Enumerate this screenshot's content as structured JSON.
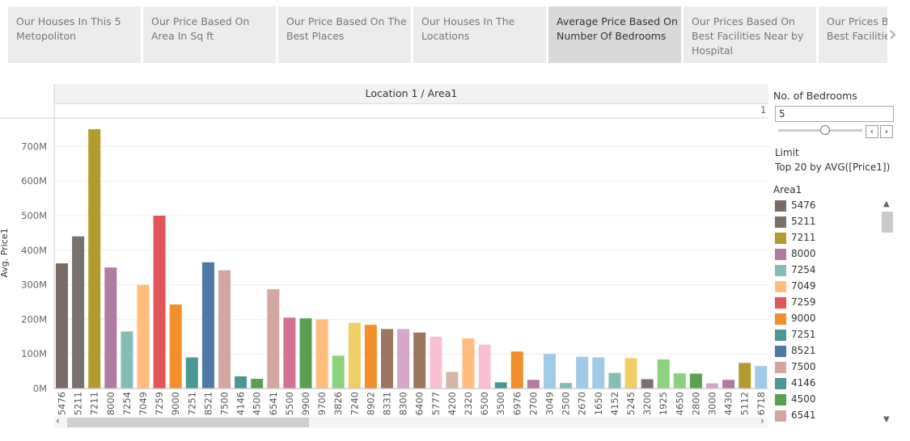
{
  "tabs": [
    {
      "label": "Our Houses In This 5 Metopoliton"
    },
    {
      "label": "Our Price Based On Area In Sq ft"
    },
    {
      "label": "Our Price Based On The Best Places"
    },
    {
      "label": "Our Houses In The Locations"
    },
    {
      "label": "Average Price Based On Number Of Bedrooms",
      "active": true
    },
    {
      "label": "Our Prices Based On Best Facilities Near by Hospital"
    },
    {
      "label": "Our Prices Based On Best Facilities Near by"
    }
  ],
  "tab_next_icon": "chevron-right-icon",
  "header": {
    "title": "Location 1 / Area1",
    "sub_value": "1"
  },
  "filters": {
    "bedrooms_label": "No. of Bedrooms",
    "bedrooms_value": "5",
    "bedrooms_slider_fraction": 0.55,
    "limit_label": "Limit",
    "limit_value": "Top 20 by AVG([Price1])",
    "legend_title": "Area1",
    "legend": [
      {
        "label": "5476",
        "color": "#7a6b66"
      },
      {
        "label": "5211",
        "color": "#77706c"
      },
      {
        "label": "7211",
        "color": "#b39b2d"
      },
      {
        "label": "8000",
        "color": "#b07aa1"
      },
      {
        "label": "7254",
        "color": "#86bcb6"
      },
      {
        "label": "7049",
        "color": "#ffbe7d"
      },
      {
        "label": "7259",
        "color": "#e15759"
      },
      {
        "label": "9000",
        "color": "#f28e2b"
      },
      {
        "label": "7251",
        "color": "#499894"
      },
      {
        "label": "8521",
        "color": "#4e79a7"
      },
      {
        "label": "7500",
        "color": "#d4a6a0"
      },
      {
        "label": "4146",
        "color": "#499894"
      },
      {
        "label": "4500",
        "color": "#59a14f"
      },
      {
        "label": "6541",
        "color": "#d4a6a0"
      }
    ]
  },
  "chart_data": {
    "type": "bar",
    "title": "Location 1 / Area1",
    "xlabel": "",
    "ylabel": "Avg. Price1",
    "ylim": [
      0,
      760
    ],
    "yticks": [
      "0M",
      "100M",
      "200M",
      "300M",
      "400M",
      "500M",
      "600M",
      "700M"
    ],
    "categories": [
      "5476",
      "5211",
      "7211",
      "8000",
      "7254",
      "7049",
      "7259",
      "9000",
      "7251",
      "8521",
      "7500",
      "4146",
      "4500",
      "6541",
      "5500",
      "9900",
      "9700",
      "3826",
      "7240",
      "8902",
      "8331",
      "8300",
      "6400",
      "5777",
      "4200",
      "2320",
      "6500",
      "3500",
      "6976",
      "2700",
      "3049",
      "2500",
      "2670",
      "1650",
      "4152",
      "5245",
      "3200",
      "1925",
      "4650",
      "2800",
      "3000",
      "4430",
      "5112",
      "6718"
    ],
    "values": [
      362,
      440,
      750,
      350,
      165,
      300,
      500,
      243,
      90,
      365,
      342,
      35,
      28,
      287,
      205,
      203,
      200,
      95,
      190,
      184,
      172,
      172,
      162,
      150,
      48,
      145,
      127,
      18,
      107,
      25,
      100,
      16,
      92,
      90,
      45,
      88,
      27,
      84,
      44,
      43,
      15,
      25,
      74,
      65
    ],
    "colors": [
      "#7a6b66",
      "#77706c",
      "#b39b2d",
      "#b07aa1",
      "#86bcb6",
      "#ffbe7d",
      "#e15759",
      "#f28e2b",
      "#499894",
      "#4e79a7",
      "#d4a6a0",
      "#499894",
      "#59a14f",
      "#d4a6a0",
      "#d37295",
      "#59a14f",
      "#ffbe7d",
      "#8cd17d",
      "#f1ce63",
      "#f28e2b",
      "#9d7660",
      "#d4a6c8",
      "#9d7660",
      "#fabfd2",
      "#d7b5a6",
      "#ffbe7d",
      "#fabfd2",
      "#499894",
      "#f28e2b",
      "#b07aa1",
      "#a0cbe8",
      "#86bcb6",
      "#a0cbe8",
      "#a0cbe8",
      "#86bcb6",
      "#f1ce63",
      "#79706e",
      "#8cd17d",
      "#8cd17d",
      "#59a14f",
      "#d4a6c8",
      "#b07aa1",
      "#b39b2d",
      "#a0cbe8"
    ],
    "grid": true,
    "legend_position": "right"
  }
}
